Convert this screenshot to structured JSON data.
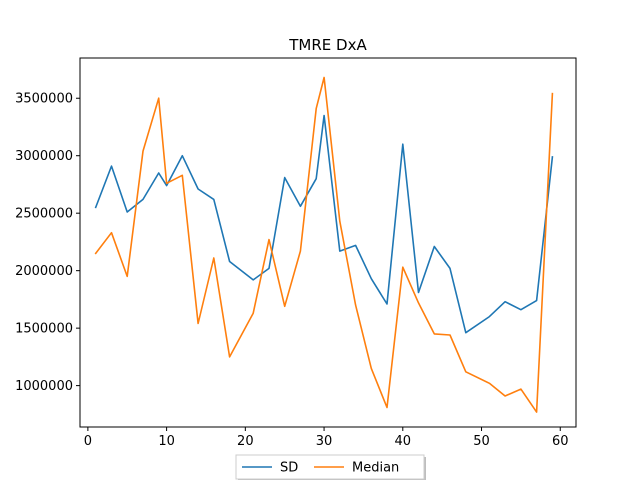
{
  "chart_data": {
    "type": "line",
    "title": "TMRE DxA",
    "xlabel": "",
    "ylabel": "",
    "xlim": [
      -1,
      62
    ],
    "ylim": [
      640000,
      3850000
    ],
    "xticks": [
      0,
      10,
      20,
      30,
      40,
      50,
      60
    ],
    "xtick_labels": [
      "0",
      "10",
      "20",
      "30",
      "40",
      "50",
      "60"
    ],
    "yticks": [
      1000000,
      1500000,
      2000000,
      2500000,
      3000000,
      3500000
    ],
    "ytick_labels": [
      "1000000",
      "1500000",
      "2000000",
      "2500000",
      "3000000",
      "3500000"
    ],
    "grid": false,
    "legend_position": "bottom-center",
    "series": [
      {
        "name": "SD",
        "color": "#1f77b4",
        "x": [
          1,
          3,
          5,
          7,
          9,
          10,
          12,
          14,
          16,
          18,
          21,
          23,
          25,
          27,
          29,
          30,
          32,
          34,
          36,
          38,
          40,
          42,
          44,
          46,
          48,
          51,
          53,
          55,
          57,
          59
        ],
        "y": [
          2550000,
          2910000,
          2510000,
          2620000,
          2850000,
          2740000,
          3000000,
          2710000,
          2620000,
          2080000,
          1920000,
          2020000,
          2810000,
          2560000,
          2800000,
          3350000,
          2170000,
          2220000,
          1930000,
          1710000,
          3100000,
          1810000,
          2210000,
          2020000,
          1460000,
          1600000,
          1730000,
          1660000,
          1740000,
          2990000
        ]
      },
      {
        "name": "Median",
        "color": "#ff7f0e",
        "x": [
          1,
          3,
          5,
          7,
          9,
          10,
          12,
          14,
          16,
          18,
          21,
          23,
          25,
          27,
          29,
          30,
          32,
          34,
          36,
          38,
          40,
          42,
          44,
          46,
          48,
          51,
          53,
          55,
          57,
          59
        ],
        "y": [
          2150000,
          2330000,
          1950000,
          3040000,
          3500000,
          2760000,
          2830000,
          1540000,
          2110000,
          1250000,
          1630000,
          2270000,
          1690000,
          2170000,
          3410000,
          3680000,
          2430000,
          1700000,
          1150000,
          810000,
          2030000,
          1720000,
          1450000,
          1440000,
          1120000,
          1020000,
          910000,
          970000,
          770000,
          3540000
        ]
      }
    ]
  }
}
